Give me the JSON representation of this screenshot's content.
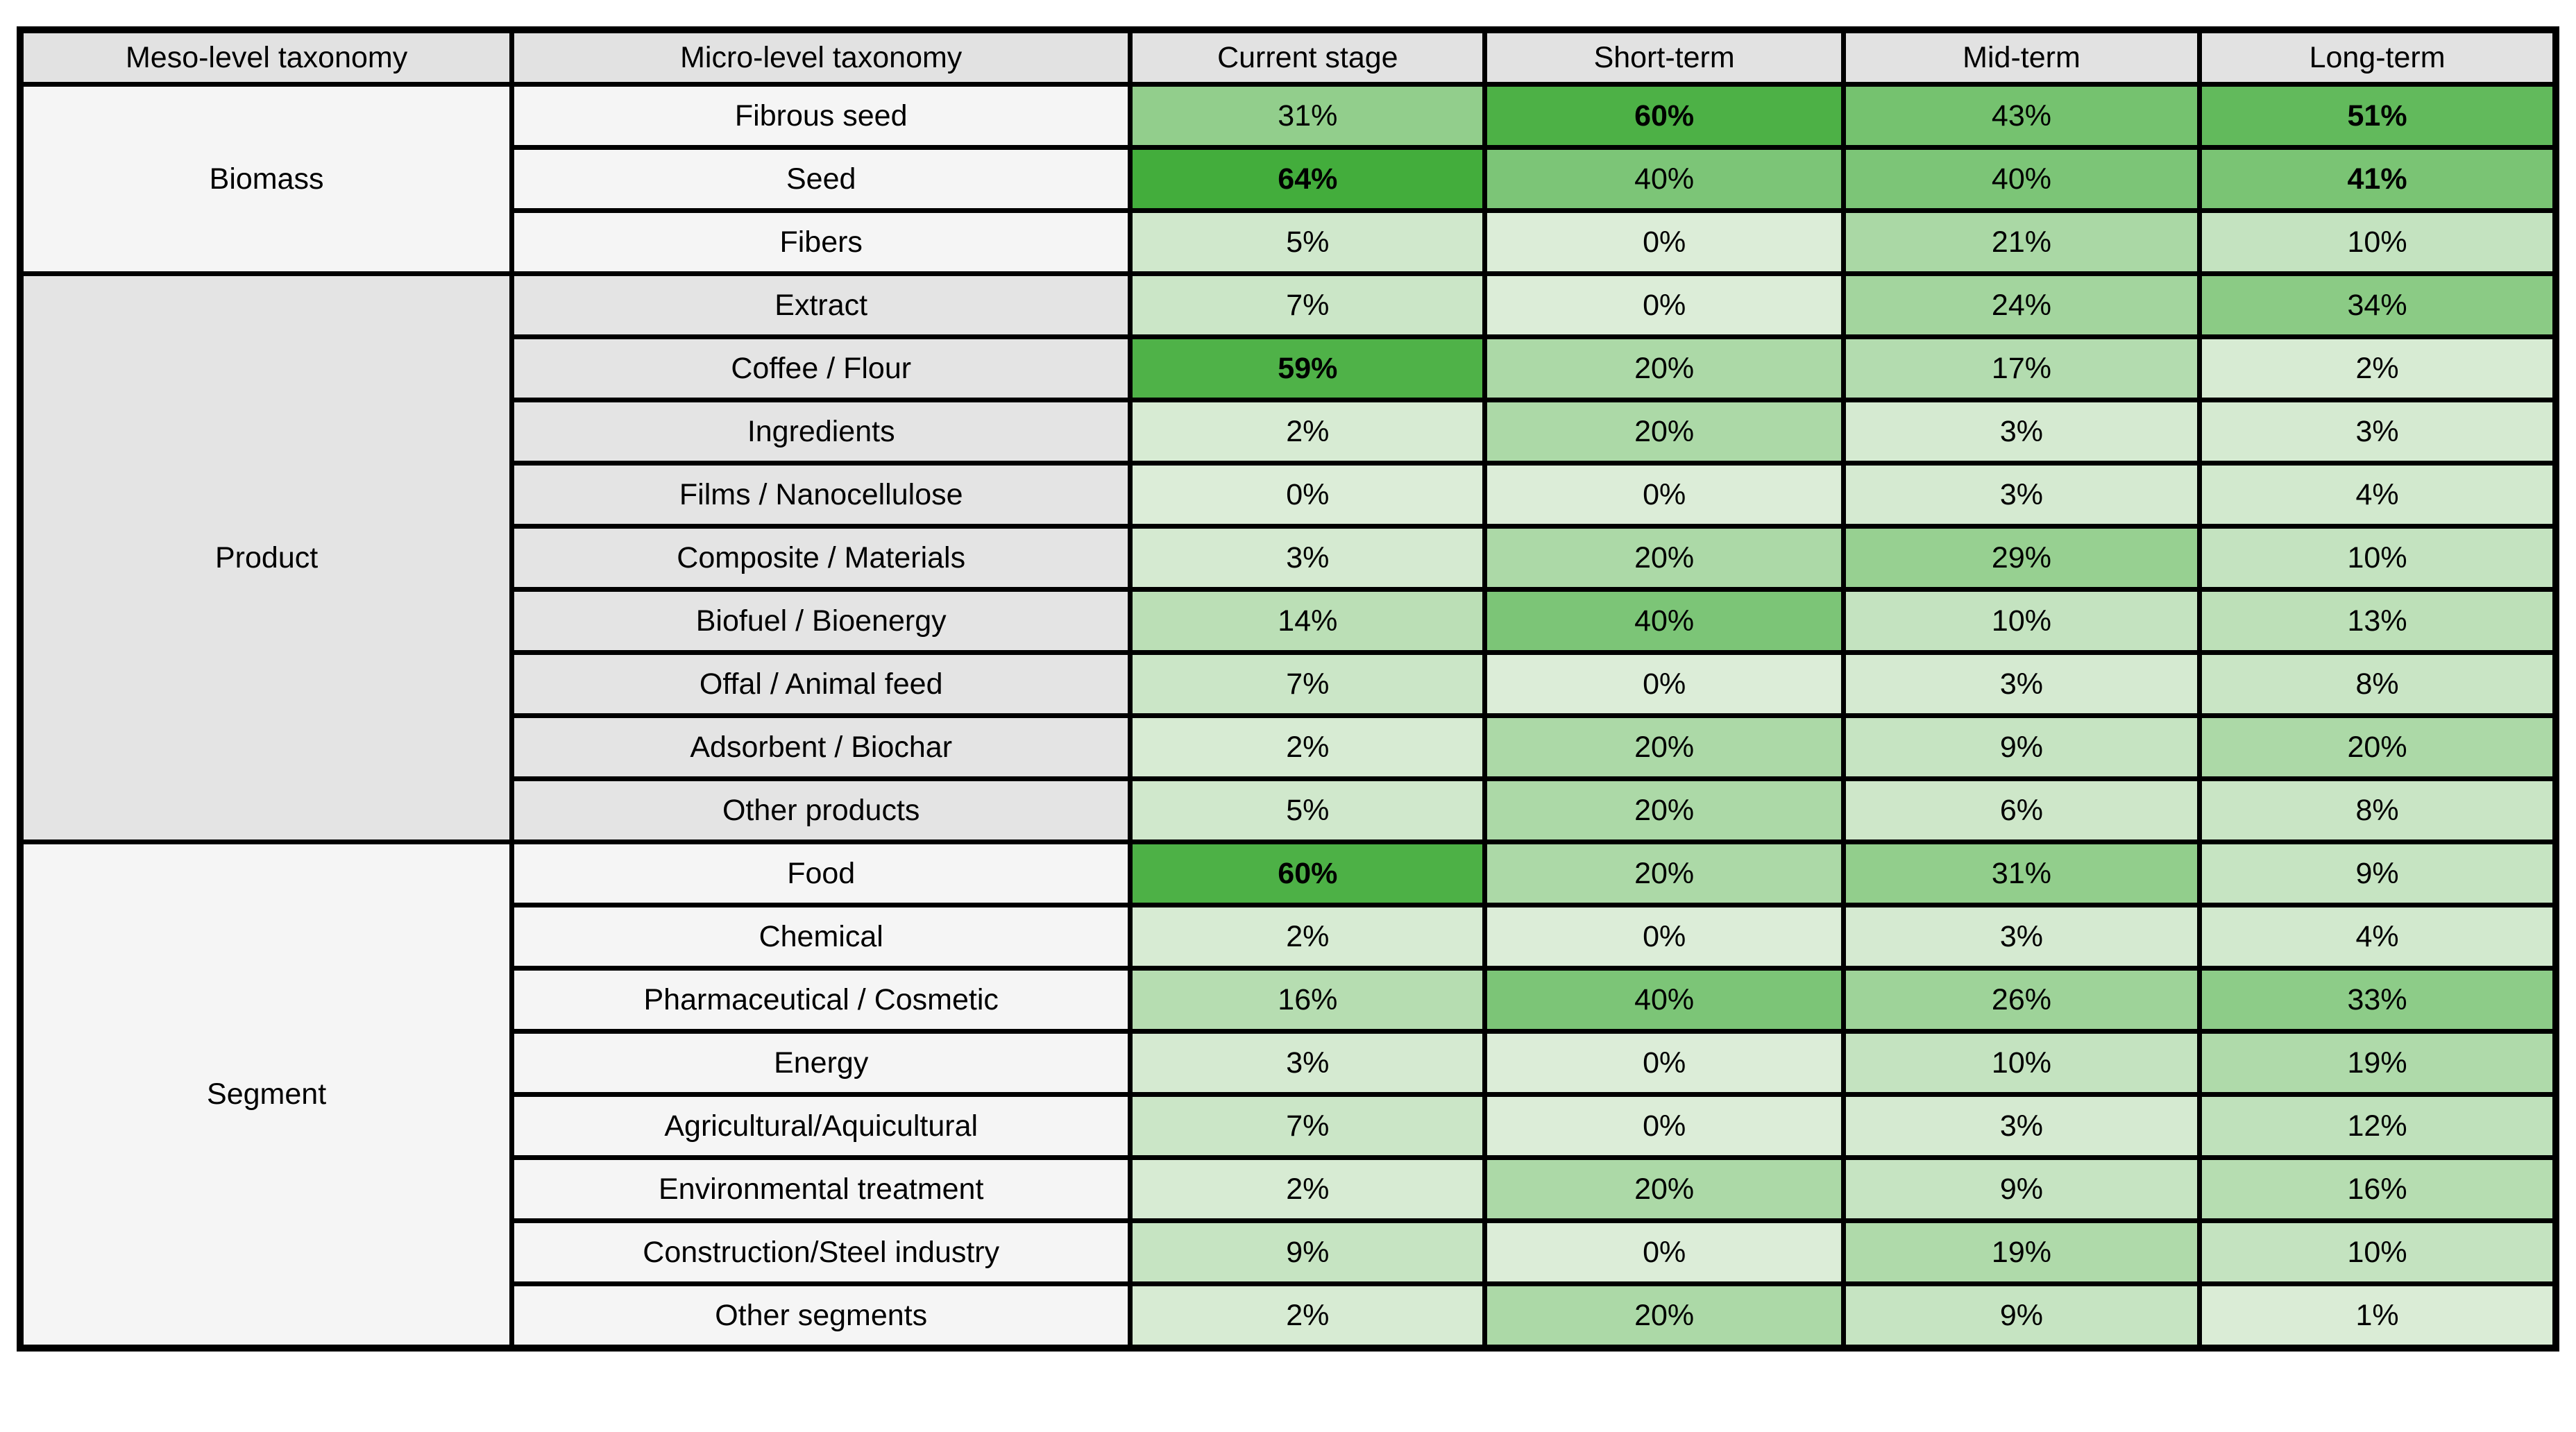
{
  "table": {
    "columns": [
      "Meso-level taxonomy",
      "Micro-level taxonomy",
      "Current stage",
      "Short-term",
      "Mid-term",
      "Long-term"
    ]
  },
  "styles": {
    "header_bg": "#e2e2e2",
    "group_bg_light": "#f5f5f5",
    "group_bg_gray": "#e4e4e4",
    "border_color": "#000000"
  },
  "chart_data": {
    "type": "heatmap",
    "title": "",
    "unit": "%",
    "value_suffix": "%",
    "columns": [
      "Current stage",
      "Short-term",
      "Mid-term",
      "Long-term"
    ],
    "color_scale": {
      "domain_min": 0,
      "domain_max": 64,
      "min_color": "#dcedd8",
      "max_color": "#43ad3c"
    },
    "row_groups": [
      {
        "group": "Biomass",
        "shade": "light",
        "rows": [
          {
            "label": "Fibrous seed",
            "values": [
              31,
              60,
              43,
              51
            ],
            "bold": [
              false,
              true,
              false,
              true
            ]
          },
          {
            "label": "Seed",
            "values": [
              64,
              40,
              40,
              41
            ],
            "bold": [
              true,
              false,
              false,
              true
            ]
          },
          {
            "label": "Fibers",
            "values": [
              5,
              0,
              21,
              10
            ],
            "bold": [
              false,
              false,
              false,
              false
            ]
          }
        ]
      },
      {
        "group": "Product",
        "shade": "gray",
        "rows": [
          {
            "label": "Extract",
            "values": [
              7,
              0,
              24,
              34
            ],
            "bold": [
              false,
              false,
              false,
              false
            ]
          },
          {
            "label": "Coffee / Flour",
            "values": [
              59,
              20,
              17,
              2
            ],
            "bold": [
              true,
              false,
              false,
              false
            ]
          },
          {
            "label": "Ingredients",
            "values": [
              2,
              20,
              3,
              3
            ],
            "bold": [
              false,
              false,
              false,
              false
            ]
          },
          {
            "label": "Films / Nanocellulose",
            "values": [
              0,
              0,
              3,
              4
            ],
            "bold": [
              false,
              false,
              false,
              false
            ]
          },
          {
            "label": "Composite / Materials",
            "values": [
              3,
              20,
              29,
              10
            ],
            "bold": [
              false,
              false,
              false,
              false
            ]
          },
          {
            "label": "Biofuel / Bioenergy",
            "values": [
              14,
              40,
              10,
              13
            ],
            "bold": [
              false,
              false,
              false,
              false
            ]
          },
          {
            "label": "Offal / Animal feed",
            "values": [
              7,
              0,
              3,
              8
            ],
            "bold": [
              false,
              false,
              false,
              false
            ]
          },
          {
            "label": "Adsorbent / Biochar",
            "values": [
              2,
              20,
              9,
              20
            ],
            "bold": [
              false,
              false,
              false,
              false
            ]
          },
          {
            "label": "Other products",
            "values": [
              5,
              20,
              6,
              8
            ],
            "bold": [
              false,
              false,
              false,
              false
            ]
          }
        ]
      },
      {
        "group": "Segment",
        "shade": "light",
        "rows": [
          {
            "label": "Food",
            "values": [
              60,
              20,
              31,
              9
            ],
            "bold": [
              true,
              false,
              false,
              false
            ]
          },
          {
            "label": "Chemical",
            "values": [
              2,
              0,
              3,
              4
            ],
            "bold": [
              false,
              false,
              false,
              false
            ]
          },
          {
            "label": "Pharmaceutical / Cosmetic",
            "values": [
              16,
              40,
              26,
              33
            ],
            "bold": [
              false,
              false,
              false,
              false
            ]
          },
          {
            "label": "Energy",
            "values": [
              3,
              0,
              10,
              19
            ],
            "bold": [
              false,
              false,
              false,
              false
            ]
          },
          {
            "label": "Agricultural/Aquicultural",
            "values": [
              7,
              0,
              3,
              12
            ],
            "bold": [
              false,
              false,
              false,
              false
            ]
          },
          {
            "label": "Environmental treatment",
            "values": [
              2,
              20,
              9,
              16
            ],
            "bold": [
              false,
              false,
              false,
              false
            ]
          },
          {
            "label": "Construction/Steel industry",
            "values": [
              9,
              0,
              19,
              10
            ],
            "bold": [
              false,
              false,
              false,
              false
            ]
          },
          {
            "label": "Other segments",
            "values": [
              2,
              20,
              9,
              1
            ],
            "bold": [
              false,
              false,
              false,
              false
            ]
          }
        ]
      }
    ]
  }
}
